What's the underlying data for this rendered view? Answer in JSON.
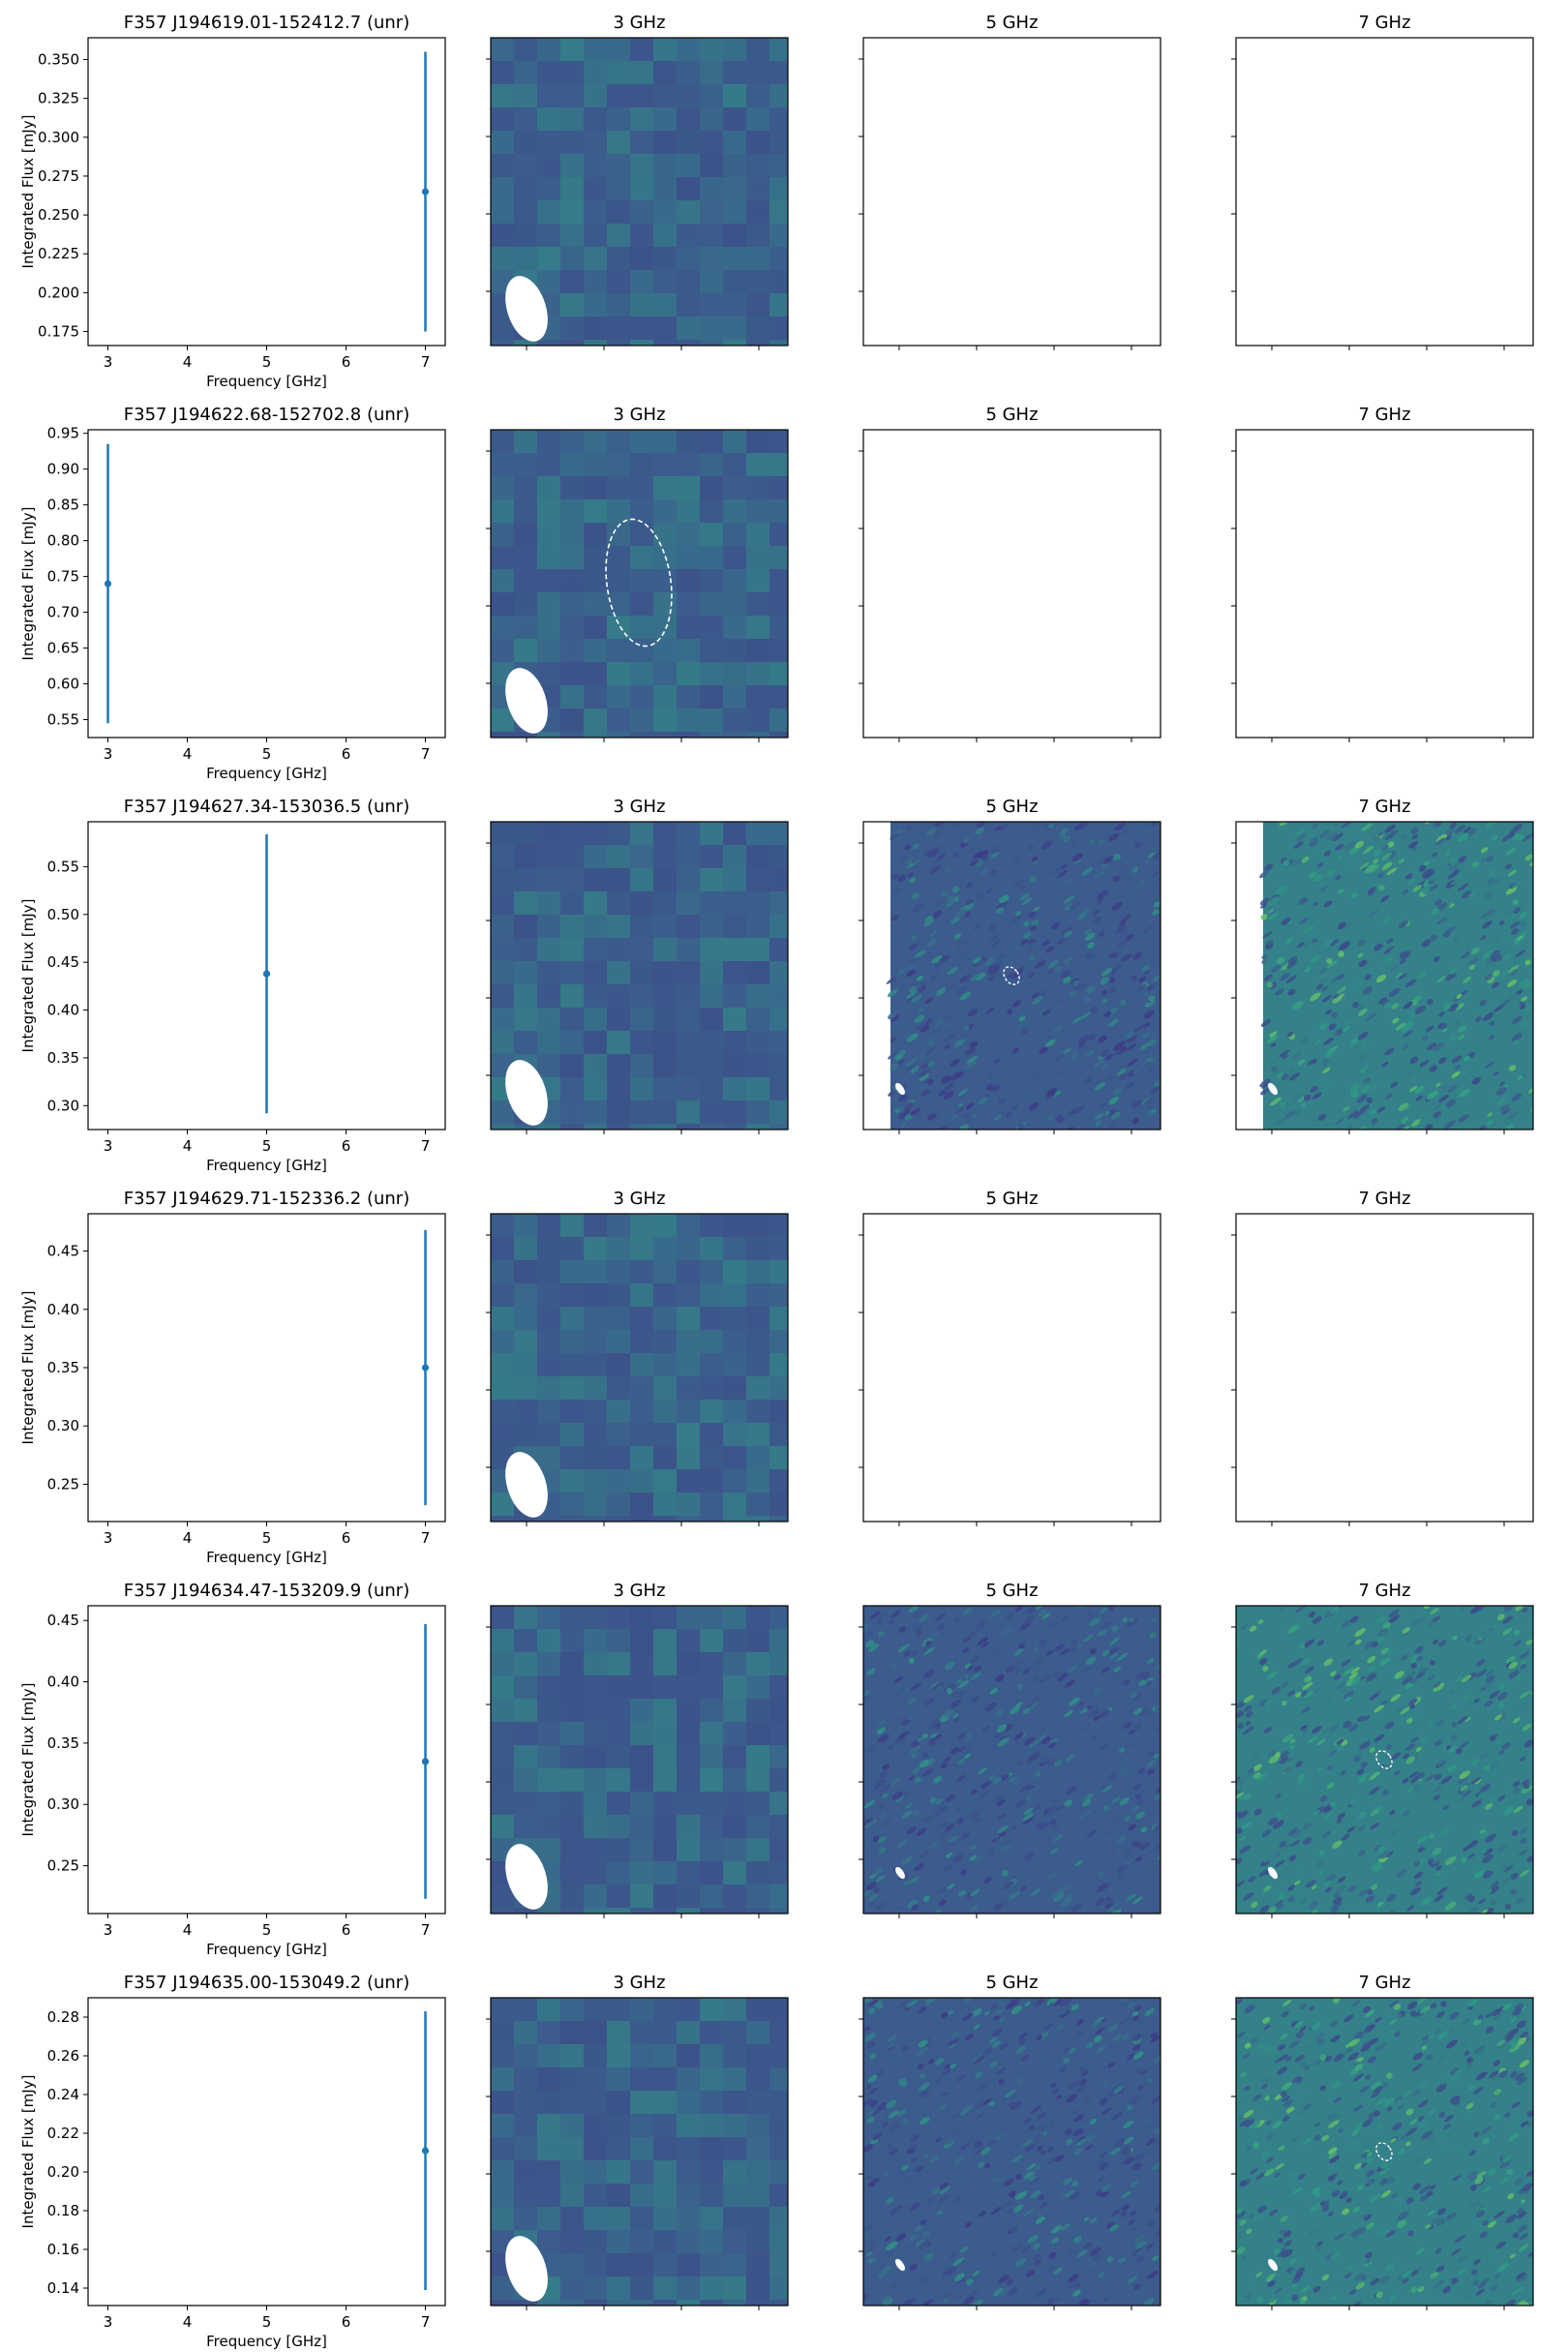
{
  "figure": {
    "image_titles": [
      "3 GHz",
      "5 GHz",
      "7 GHz"
    ],
    "colors": {
      "data_point": "#1f77b4",
      "axes": "#000000",
      "map_base": "#3b5c8c",
      "map_low": "#3e3a85",
      "map_high": "#2f9c86",
      "map_bright": "#7fcf5a",
      "beam": "#ffffff",
      "fit_ellipse": "#ffffff"
    },
    "colormap": "viridis"
  },
  "chart_data": [
    {
      "type": "scatter",
      "title": "F357 J194619.01-152412.7 (unr)",
      "xlabel": "Frequency [GHz]",
      "ylabel": "Integrated Flux [mJy]",
      "xlim": [
        2.75,
        7.25
      ],
      "ylim": [
        0.166,
        0.364
      ],
      "xticks": [
        "3",
        "4",
        "5",
        "6",
        "7"
      ],
      "yticks": [
        "0.175",
        "0.200",
        "0.225",
        "0.250",
        "0.275",
        "0.300",
        "0.325",
        "0.350"
      ],
      "points": [
        {
          "x": 7,
          "y": 0.265,
          "yerr": 0.09
        }
      ],
      "images": {
        "3 GHz": "map",
        "5 GHz": "empty",
        "7 GHz": "empty"
      },
      "fit_ellipse": "none"
    },
    {
      "type": "scatter",
      "title": "F357 J194622.68-152702.8 (unr)",
      "xlabel": "Frequency [GHz]",
      "ylabel": "Integrated Flux [mJy]",
      "xlim": [
        2.75,
        7.25
      ],
      "ylim": [
        0.525,
        0.955
      ],
      "xticks": [
        "3",
        "4",
        "5",
        "6",
        "7"
      ],
      "yticks": [
        "0.55",
        "0.60",
        "0.65",
        "0.70",
        "0.75",
        "0.80",
        "0.85",
        "0.90",
        "0.95"
      ],
      "points": [
        {
          "x": 3,
          "y": 0.74,
          "yerr": 0.195
        }
      ],
      "images": {
        "3 GHz": "map",
        "5 GHz": "empty",
        "7 GHz": "empty"
      },
      "fit_ellipse": "3 GHz"
    },
    {
      "type": "scatter",
      "title": "F357 J194627.34-153036.5 (unr)",
      "xlabel": "Frequency [GHz]",
      "ylabel": "Integrated Flux [mJy]",
      "xlim": [
        2.75,
        7.25
      ],
      "ylim": [
        0.275,
        0.597
      ],
      "xticks": [
        "3",
        "4",
        "5",
        "6",
        "7"
      ],
      "yticks": [
        "0.30",
        "0.35",
        "0.40",
        "0.45",
        "0.50",
        "0.55"
      ],
      "points": [
        {
          "x": 5,
          "y": 0.438,
          "yerr": 0.146
        }
      ],
      "images": {
        "3 GHz": "map",
        "5 GHz": "map-partial",
        "7 GHz": "map-partial"
      },
      "fit_ellipse": "5 GHz"
    },
    {
      "type": "scatter",
      "title": "F357 J194629.71-152336.2 (unr)",
      "xlabel": "Frequency [GHz]",
      "ylabel": "Integrated Flux [mJy]",
      "xlim": [
        2.75,
        7.25
      ],
      "ylim": [
        0.218,
        0.482
      ],
      "xticks": [
        "3",
        "4",
        "5",
        "6",
        "7"
      ],
      "yticks": [
        "0.25",
        "0.30",
        "0.35",
        "0.40",
        "0.45"
      ],
      "points": [
        {
          "x": 7,
          "y": 0.35,
          "yerr": 0.118
        }
      ],
      "images": {
        "3 GHz": "map",
        "5 GHz": "empty",
        "7 GHz": "empty"
      },
      "fit_ellipse": "none"
    },
    {
      "type": "scatter",
      "title": "F357 J194634.47-153209.9 (unr)",
      "xlabel": "Frequency [GHz]",
      "ylabel": "Integrated Flux [mJy]",
      "xlim": [
        2.75,
        7.25
      ],
      "ylim": [
        0.211,
        0.462
      ],
      "xticks": [
        "3",
        "4",
        "5",
        "6",
        "7"
      ],
      "yticks": [
        "0.25",
        "0.30",
        "0.35",
        "0.40",
        "0.45"
      ],
      "points": [
        {
          "x": 7,
          "y": 0.335,
          "yerr": 0.112
        }
      ],
      "images": {
        "3 GHz": "map",
        "5 GHz": "map",
        "7 GHz": "map"
      },
      "fit_ellipse": "7 GHz"
    },
    {
      "type": "scatter",
      "title": "F357 J194635.00-153049.2 (unr)",
      "xlabel": "Frequency [GHz]",
      "ylabel": "Integrated Flux [mJy]",
      "xlim": [
        2.75,
        7.25
      ],
      "ylim": [
        0.131,
        0.29
      ],
      "xticks": [
        "3",
        "4",
        "5",
        "6",
        "7"
      ],
      "yticks": [
        "0.14",
        "0.16",
        "0.18",
        "0.20",
        "0.22",
        "0.24",
        "0.26",
        "0.28"
      ],
      "points": [
        {
          "x": 7,
          "y": 0.211,
          "yerr": 0.072
        }
      ],
      "images": {
        "3 GHz": "map",
        "5 GHz": "map",
        "7 GHz": "map"
      },
      "fit_ellipse": "7 GHz"
    }
  ]
}
